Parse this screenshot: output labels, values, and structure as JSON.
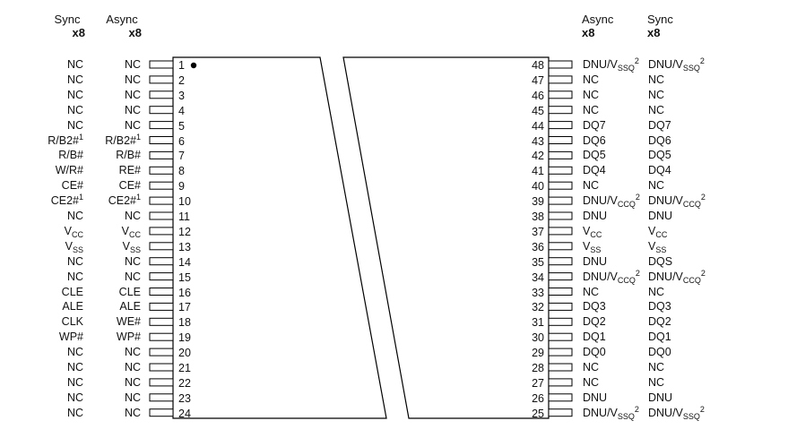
{
  "headers": {
    "left": [
      {
        "name": "Sync",
        "width": "x8"
      },
      {
        "name": "Async",
        "width": "x8"
      }
    ],
    "right": [
      {
        "name": "Async",
        "width": "x8"
      },
      {
        "name": "Sync",
        "width": "x8"
      }
    ]
  },
  "left_pins": [
    {
      "num": "1",
      "async": "NC",
      "sync": "NC",
      "dot": true
    },
    {
      "num": "2",
      "async": "NC",
      "sync": "NC"
    },
    {
      "num": "3",
      "async": "NC",
      "sync": "NC"
    },
    {
      "num": "4",
      "async": "NC",
      "sync": "NC"
    },
    {
      "num": "5",
      "async": "NC",
      "sync": "NC"
    },
    {
      "num": "6",
      "async": "R/B2#",
      "async_sup": "1",
      "sync": "R/B2#",
      "sync_sup": "1"
    },
    {
      "num": "7",
      "async": "R/B#",
      "sync": "R/B#"
    },
    {
      "num": "8",
      "async": "RE#",
      "sync": "W/R#"
    },
    {
      "num": "9",
      "async": "CE#",
      "sync": "CE#"
    },
    {
      "num": "10",
      "async": "CE2#",
      "async_sup": "1",
      "sync": "CE2#",
      "sync_sup": "1"
    },
    {
      "num": "11",
      "async": "NC",
      "sync": "NC"
    },
    {
      "num": "12",
      "async": "V",
      "async_sub": "CC",
      "sync": "V",
      "sync_sub": "CC"
    },
    {
      "num": "13",
      "async": "V",
      "async_sub": "SS",
      "sync": "V",
      "sync_sub": "SS"
    },
    {
      "num": "14",
      "async": "NC",
      "sync": "NC"
    },
    {
      "num": "15",
      "async": "NC",
      "sync": "NC"
    },
    {
      "num": "16",
      "async": "CLE",
      "sync": "CLE"
    },
    {
      "num": "17",
      "async": "ALE",
      "sync": "ALE"
    },
    {
      "num": "18",
      "async": "WE#",
      "sync": "CLK"
    },
    {
      "num": "19",
      "async": "WP#",
      "sync": "WP#"
    },
    {
      "num": "20",
      "async": "NC",
      "sync": "NC"
    },
    {
      "num": "21",
      "async": "NC",
      "sync": "NC"
    },
    {
      "num": "22",
      "async": "NC",
      "sync": "NC"
    },
    {
      "num": "23",
      "async": "NC",
      "sync": "NC"
    },
    {
      "num": "24",
      "async": "NC",
      "sync": "NC"
    }
  ],
  "right_pins": [
    {
      "num": "48",
      "async": "DNU/V",
      "async_sub": "SSQ",
      "async_sup": "2",
      "sync": "DNU/V",
      "sync_sub": "SSQ",
      "sync_sup": "2"
    },
    {
      "num": "47",
      "async": "NC",
      "sync": "NC"
    },
    {
      "num": "46",
      "async": "NC",
      "sync": "NC"
    },
    {
      "num": "45",
      "async": "NC",
      "sync": "NC"
    },
    {
      "num": "44",
      "async": "DQ7",
      "sync": "DQ7"
    },
    {
      "num": "43",
      "async": "DQ6",
      "sync": "DQ6"
    },
    {
      "num": "42",
      "async": "DQ5",
      "sync": "DQ5"
    },
    {
      "num": "41",
      "async": "DQ4",
      "sync": "DQ4"
    },
    {
      "num": "40",
      "async": "NC",
      "sync": "NC"
    },
    {
      "num": "39",
      "async": "DNU/V",
      "async_sub": "CCQ",
      "async_sup": "2",
      "sync": "DNU/V",
      "sync_sub": "CCQ",
      "sync_sup": "2"
    },
    {
      "num": "38",
      "async": "DNU",
      "sync": "DNU"
    },
    {
      "num": "37",
      "async": "V",
      "async_sub": "CC",
      "sync": "V",
      "sync_sub": "CC"
    },
    {
      "num": "36",
      "async": "V",
      "async_sub": "SS",
      "sync": "V",
      "sync_sub": "SS"
    },
    {
      "num": "35",
      "async": "DNU",
      "sync": "DQS"
    },
    {
      "num": "34",
      "async": "DNU/V",
      "async_sub": "CCQ",
      "async_sup": "2",
      "sync": "DNU/V",
      "sync_sub": "CCQ",
      "sync_sup": "2"
    },
    {
      "num": "33",
      "async": "NC",
      "sync": "NC"
    },
    {
      "num": "32",
      "async": "DQ3",
      "sync": "DQ3"
    },
    {
      "num": "31",
      "async": "DQ2",
      "sync": "DQ2"
    },
    {
      "num": "30",
      "async": "DQ1",
      "sync": "DQ1"
    },
    {
      "num": "29",
      "async": "DQ0",
      "sync": "DQ0"
    },
    {
      "num": "28",
      "async": "NC",
      "sync": "NC"
    },
    {
      "num": "27",
      "async": "NC",
      "sync": "NC"
    },
    {
      "num": "26",
      "async": "DNU",
      "sync": "DNU"
    },
    {
      "num": "25",
      "async": "DNU/V",
      "async_sub": "SSQ",
      "async_sup": "2",
      "sync": "DNU/V",
      "sync_sub": "SSQ",
      "sync_sup": "2"
    }
  ]
}
